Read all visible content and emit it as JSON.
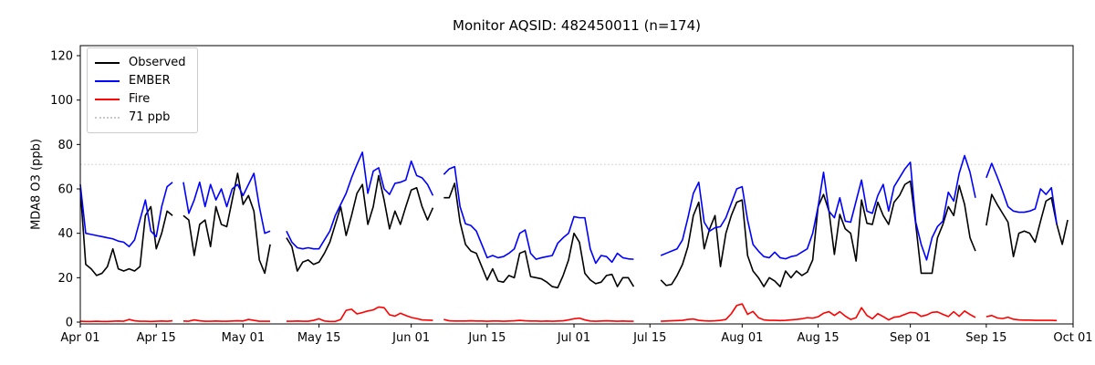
{
  "title": "Monitor AQSID: 482450011 (n=174)",
  "chart_data": {
    "type": "line",
    "title": "Monitor AQSID: 482450011 (n=174)",
    "xlabel": "",
    "ylabel": "MDA8 O3 (ppb)",
    "x_start_label": "Apr 01",
    "x_end_label": "Oct 01",
    "x_range_days": [
      0,
      183
    ],
    "ylim": [
      0,
      124
    ],
    "yticks": [
      0,
      20,
      40,
      60,
      80,
      100,
      120
    ],
    "grid": false,
    "legend_position": "upper left",
    "xticks": [
      {
        "label": "Apr 01",
        "day": 0
      },
      {
        "label": "Apr 15",
        "day": 14
      },
      {
        "label": "May 01",
        "day": 30
      },
      {
        "label": "May 15",
        "day": 44
      },
      {
        "label": "Jun 01",
        "day": 61
      },
      {
        "label": "Jun 15",
        "day": 75
      },
      {
        "label": "Jul 01",
        "day": 91
      },
      {
        "label": "Jul 15",
        "day": 105
      },
      {
        "label": "Aug 01",
        "day": 122
      },
      {
        "label": "Aug 15",
        "day": 136
      },
      {
        "label": "Sep 01",
        "day": 153
      },
      {
        "label": "Sep 15",
        "day": 167
      },
      {
        "label": "Oct 01",
        "day": 183
      }
    ],
    "reference_line": {
      "label": "71 ppb",
      "value": 71,
      "color": "#d3d3d3",
      "style": "dotted"
    },
    "legend_entries": [
      {
        "label": "Observed",
        "color": "#000000",
        "style": "solid"
      },
      {
        "label": "EMBER",
        "color": "#0000ff",
        "style": "solid"
      },
      {
        "label": "Fire",
        "color": "#ff0000",
        "style": "solid"
      },
      {
        "label": "71 ppb",
        "color": "#c9c9c9",
        "style": "dotted"
      }
    ],
    "series": [
      {
        "name": "Observed",
        "color": "#000000",
        "values": [
          60,
          26,
          24,
          21,
          22,
          25,
          33,
          24,
          23,
          24,
          23,
          25,
          48,
          52,
          33,
          40,
          50,
          48,
          null,
          48,
          46,
          30,
          44,
          46,
          34,
          52,
          44,
          43,
          55,
          67,
          53,
          57,
          50,
          28,
          22,
          35,
          null,
          null,
          38,
          34,
          23,
          27,
          28,
          26,
          27,
          31,
          36,
          44,
          52,
          39,
          48,
          58,
          62,
          44,
          52,
          66,
          55,
          42,
          50,
          44,
          52,
          59.5,
          60.5,
          52,
          46,
          51.5,
          null,
          56,
          56,
          62.5,
          45,
          35,
          32,
          31,
          25,
          19,
          24,
          18.5,
          18,
          21,
          20,
          31,
          32,
          20.5,
          20,
          19.5,
          18,
          16,
          15.5,
          21,
          28,
          40,
          36,
          22,
          19,
          17.3,
          18,
          21,
          21.5,
          16,
          20,
          20,
          16,
          null,
          null,
          null,
          null,
          19,
          16.5,
          17,
          21,
          26,
          34,
          48,
          54,
          33,
          42,
          48,
          25,
          40,
          48,
          54,
          55,
          30,
          23,
          20,
          16,
          20,
          18.5,
          16,
          23,
          20,
          23,
          21,
          22.5,
          28,
          52,
          57.5,
          50,
          30.5,
          48.5,
          42,
          40,
          27.5,
          55,
          44.5,
          44,
          54,
          48,
          44,
          54,
          57,
          62,
          63.5,
          44,
          22,
          22,
          22,
          38,
          44,
          52,
          48,
          61.5,
          53,
          38,
          32,
          null,
          43.5,
          57.5,
          53,
          49,
          45,
          29.5,
          40,
          41,
          40,
          36,
          45.5,
          54.5,
          56,
          44,
          35,
          46
        ]
      },
      {
        "name": "EMBER",
        "color": "#0000ff",
        "values": [
          62,
          40,
          39.5,
          39,
          38.5,
          38,
          37.5,
          36.5,
          36,
          34,
          37,
          46,
          55,
          41,
          38.5,
          52,
          61,
          63,
          null,
          63,
          49,
          55,
          63,
          52,
          62,
          55,
          60,
          52,
          60,
          62,
          57,
          62,
          67,
          52,
          40,
          41,
          null,
          null,
          41,
          36,
          33.5,
          33,
          33.5,
          33,
          33,
          37,
          41,
          48,
          53,
          58,
          65,
          71,
          76.5,
          58,
          68,
          69.5,
          60,
          57.5,
          62.5,
          63,
          64,
          72.5,
          66,
          65,
          62,
          57,
          null,
          66.5,
          69,
          70,
          52,
          44.3,
          43.5,
          41,
          35,
          29,
          30,
          29,
          29.5,
          31,
          33,
          40,
          41.5,
          31,
          28.3,
          29,
          29.5,
          30,
          35.5,
          38,
          40,
          47.5,
          47,
          47,
          33,
          26.5,
          30,
          29.5,
          27,
          31,
          29,
          28.5,
          28.3,
          null,
          null,
          null,
          null,
          30,
          31,
          32,
          33,
          37,
          47,
          58,
          63,
          45,
          41,
          42.5,
          43,
          47,
          53.5,
          60,
          61,
          46,
          35,
          32,
          29.5,
          29,
          31.5,
          29,
          28.5,
          29.5,
          30,
          31.5,
          33,
          40,
          52,
          67.5,
          50,
          47,
          56,
          45.5,
          45,
          54.5,
          64,
          50,
          49,
          57,
          62,
          50,
          61,
          65,
          69,
          72,
          45,
          35,
          28,
          38,
          43,
          45.5,
          58.5,
          54.5,
          67,
          75,
          67.5,
          56,
          null,
          65,
          71.5,
          65.5,
          59,
          52,
          50,
          49.5,
          49.5,
          50,
          51,
          60,
          57.5,
          60.5,
          44,
          null,
          null
        ]
      },
      {
        "name": "Fire",
        "color": "#ff0000",
        "values": [
          0.4,
          0.3,
          0.3,
          0.4,
          0.3,
          0.3,
          0.4,
          0.5,
          0.4,
          1.2,
          0.6,
          0.4,
          0.4,
          0.3,
          0.4,
          0.5,
          0.4,
          0.6,
          null,
          0.5,
          0.4,
          1.0,
          0.6,
          0.4,
          0.4,
          0.5,
          0.4,
          0.4,
          0.5,
          0.6,
          0.5,
          1.2,
          0.8,
          0.4,
          0.4,
          0.4,
          null,
          null,
          0.4,
          0.4,
          0.5,
          0.4,
          0.4,
          0.8,
          1.5,
          0.5,
          0.3,
          0.3,
          1.2,
          5.3,
          5.8,
          3.7,
          4.3,
          5.0,
          5.5,
          6.8,
          6.5,
          3.3,
          2.7,
          4.0,
          3.0,
          2.1,
          1.6,
          1.0,
          0.9,
          0.8,
          null,
          1.2,
          0.6,
          0.5,
          0.5,
          0.5,
          0.6,
          0.5,
          0.5,
          0.4,
          0.5,
          0.5,
          0.4,
          0.5,
          0.6,
          0.8,
          0.6,
          0.5,
          0.5,
          0.4,
          0.5,
          0.4,
          0.5,
          0.6,
          1.0,
          1.5,
          1.8,
          1.0,
          0.5,
          0.4,
          0.5,
          0.6,
          0.5,
          0.4,
          0.5,
          0.4,
          0.4,
          null,
          null,
          null,
          null,
          0.4,
          0.5,
          0.6,
          0.7,
          0.8,
          1.2,
          1.4,
          0.8,
          0.6,
          0.5,
          0.6,
          0.8,
          1.2,
          3.8,
          7.5,
          8.2,
          3.5,
          4.8,
          2.0,
          1.0,
          0.8,
          0.8,
          0.7,
          0.8,
          1.0,
          1.2,
          1.5,
          2.0,
          1.8,
          2.4,
          4.0,
          4.7,
          3.0,
          4.7,
          2.7,
          1.2,
          2.0,
          6.5,
          3.0,
          1.5,
          3.8,
          2.5,
          1.0,
          2.2,
          2.5,
          3.5,
          4.4,
          4.2,
          2.6,
          3.2,
          4.4,
          4.6,
          3.5,
          2.5,
          4.7,
          2.6,
          5.0,
          3.4,
          2.1,
          null,
          2.4,
          3.0,
          1.9,
          1.6,
          2.2,
          1.3,
          1.0,
          0.9,
          0.9,
          0.8,
          0.8,
          0.8,
          0.8,
          0.7,
          null,
          null
        ]
      }
    ]
  }
}
